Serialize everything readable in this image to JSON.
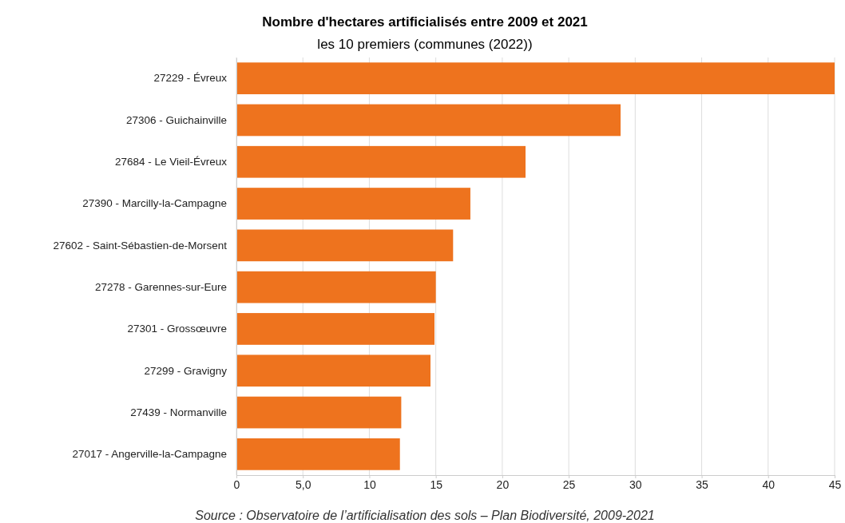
{
  "chart_data": {
    "type": "bar",
    "orientation": "horizontal",
    "title": "Nombre d'hectares artificialisés entre 2009 et 2021",
    "subtitle": "les 10 premiers (communes (2022))",
    "categories": [
      "27229 - Évreux",
      "27306 - Guichainville",
      "27684 - Le Vieil-Évreux",
      "27390 - Marcilly-la-Campagne",
      "27602 - Saint-Sébastien-de-Morsent",
      "27278 - Garennes-sur-Eure",
      "27301 - Grossœuvre",
      "27299 - Gravigny",
      "27439 - Normanville",
      "27017 - Angerville-la-Campagne"
    ],
    "values": [
      45,
      28.9,
      21.75,
      17.6,
      16.3,
      15.0,
      14.9,
      14.6,
      12.4,
      12.3
    ],
    "color": "#ee731e",
    "xlim": [
      0,
      45
    ],
    "xticks": [
      0,
      {
        "value": 5,
        "label": "5,0"
      },
      10,
      15,
      20,
      25,
      30,
      35,
      40,
      45
    ],
    "grid": "x",
    "annotations": [
      "Source : Observatoire de l’artificialisation des sols – Plan Biodiversité, 2009-2021"
    ]
  }
}
